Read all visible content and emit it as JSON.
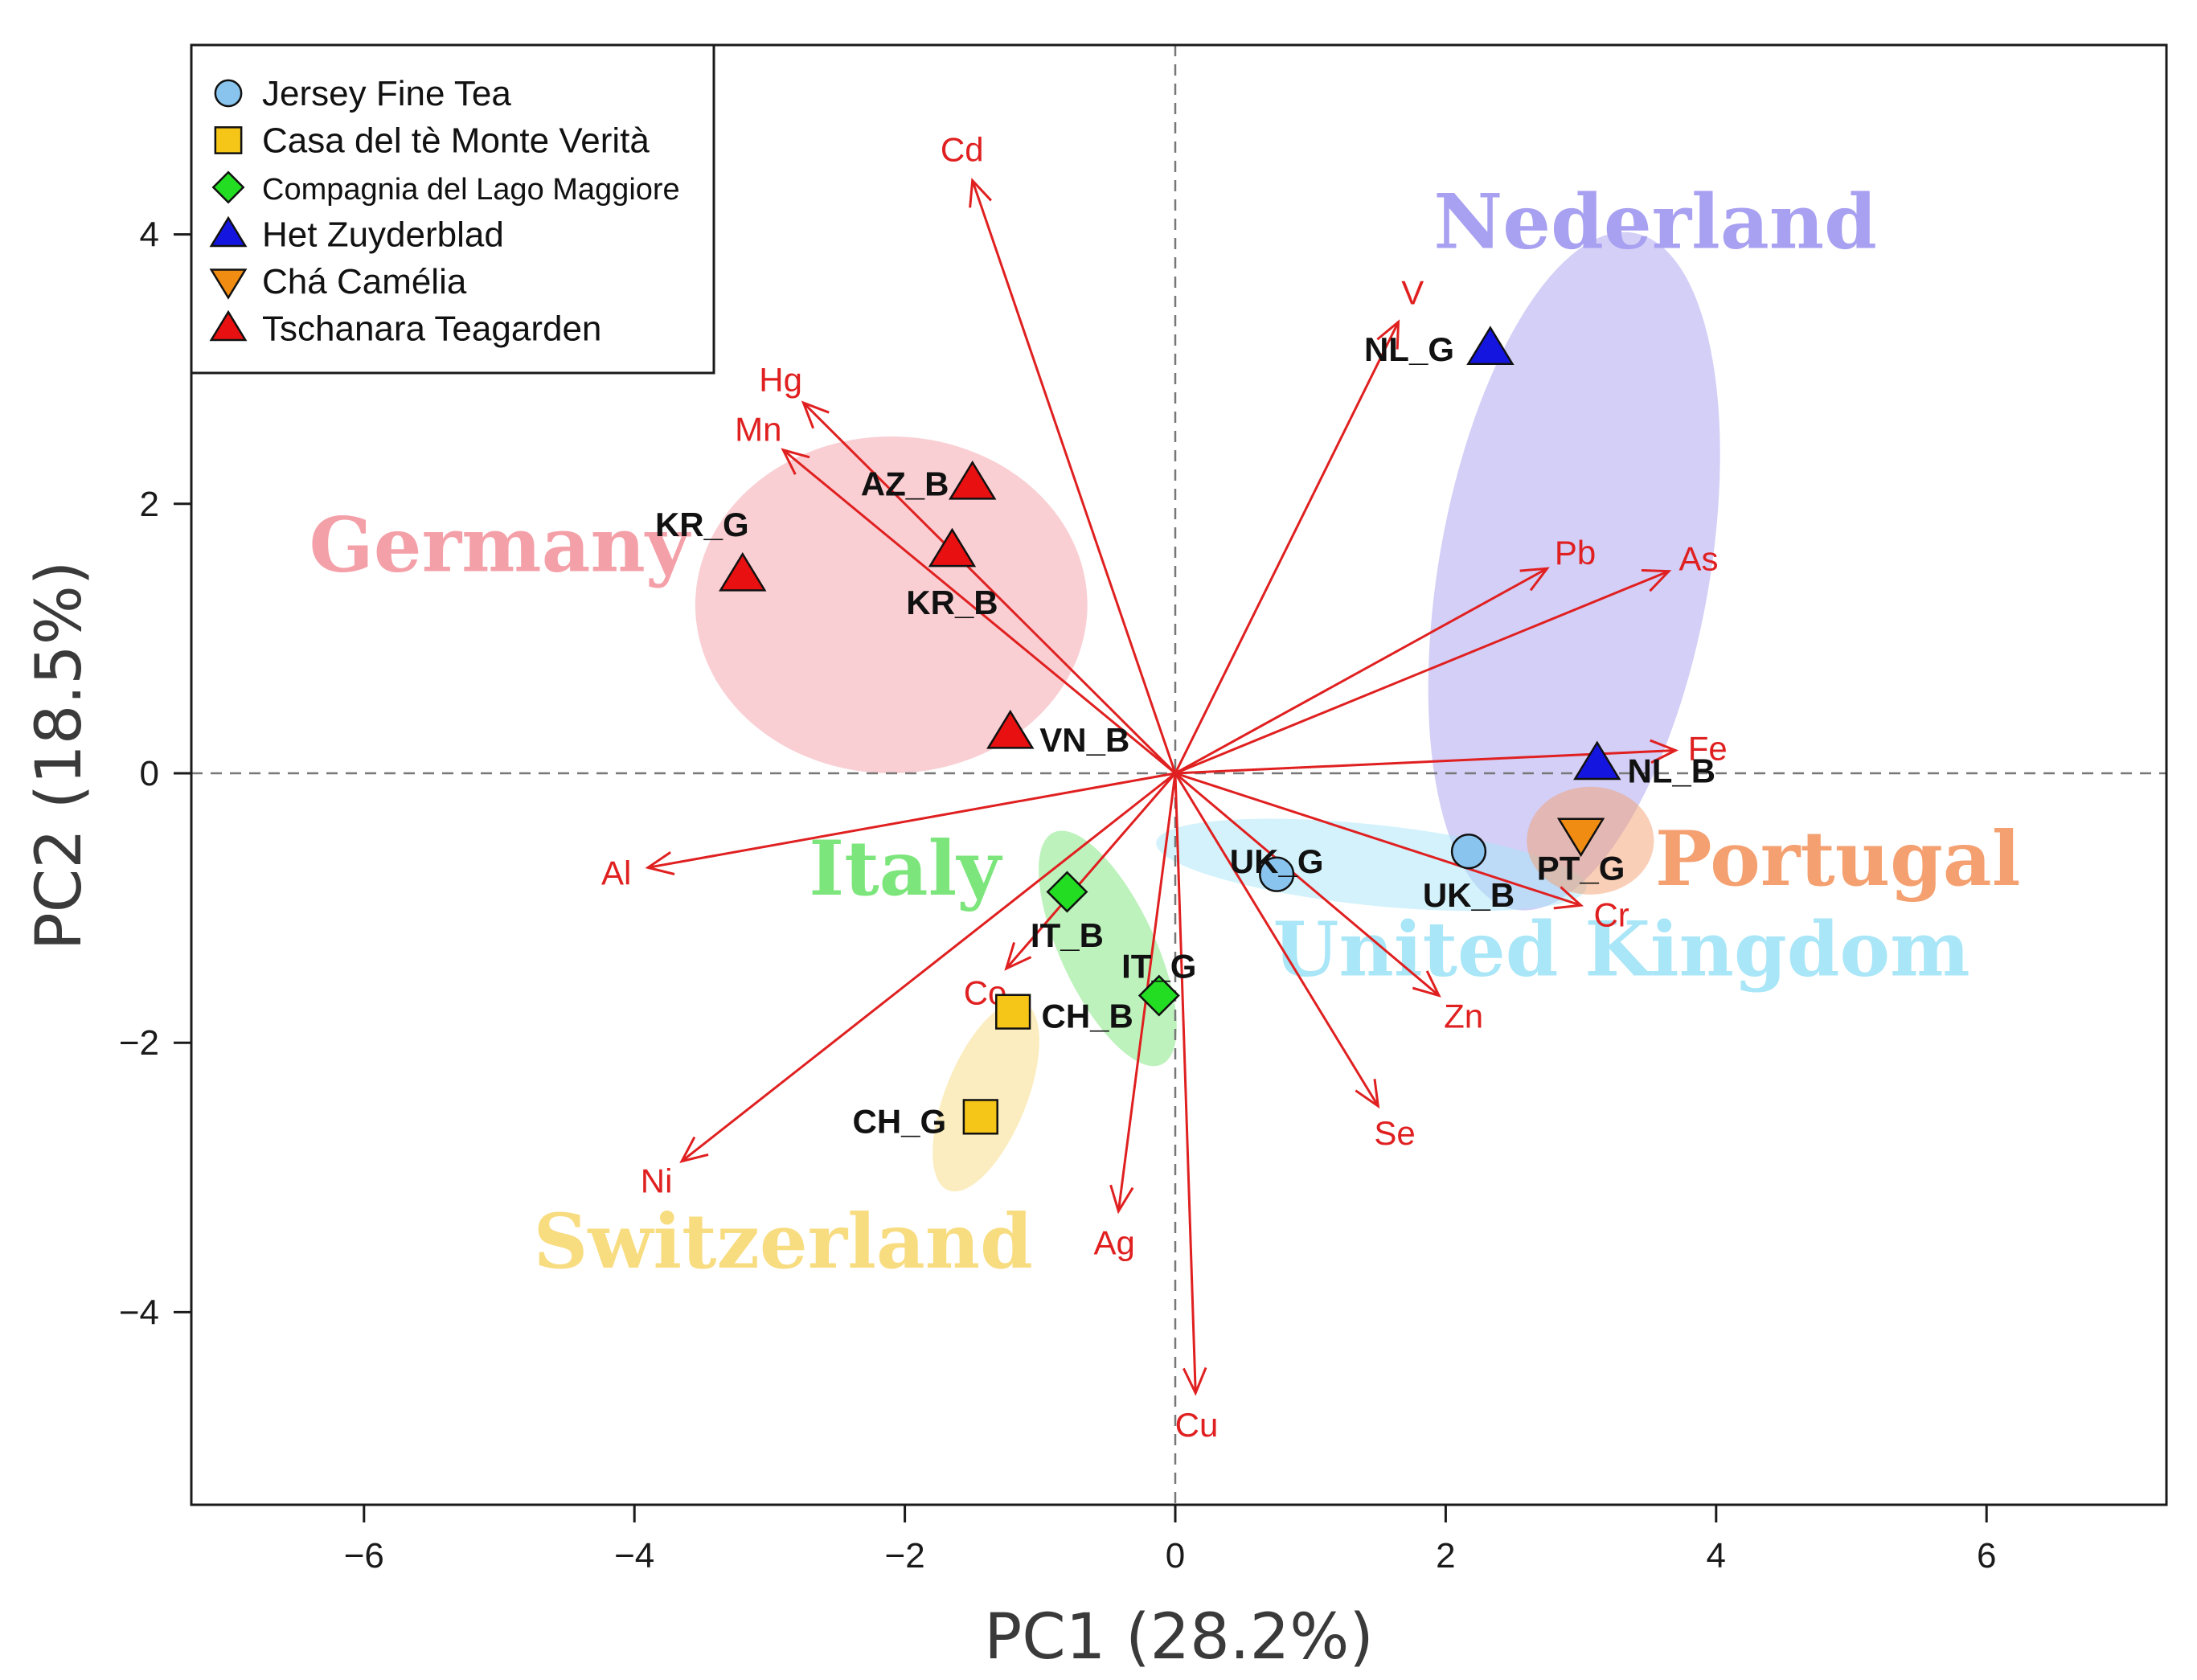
{
  "chart_data": {
    "type": "scatter",
    "subtype": "pca-biplot",
    "title": "",
    "xlabel": "PC1 (28.2%)",
    "ylabel": "PC2 (18.5%)",
    "xlim": [
      -7.3,
      7.3
    ],
    "ylim": [
      -5.4,
      5.4
    ],
    "xticks": [
      -6,
      -4,
      -2,
      0,
      2,
      4,
      6
    ],
    "yticks": [
      -4,
      -2,
      0,
      2,
      4
    ],
    "xtick_labels": [
      "−6",
      "−4",
      "−2",
      "0",
      "2",
      "4",
      "6"
    ],
    "ytick_labels": [
      "−4",
      "−2",
      "0",
      "2",
      "4"
    ],
    "reference_lines": {
      "x": 0,
      "y": 0,
      "style": "dashed"
    },
    "legend": {
      "position": "top-left",
      "entries": [
        {
          "label": "Jersey Fine Tea",
          "marker": "circle",
          "color": "#89c4ee"
        },
        {
          "label": "Casa del tè Monte Verità",
          "marker": "square",
          "color": "#f5c518"
        },
        {
          "label": "Compagnia del Lago Maggiore",
          "marker": "diamond",
          "color": "#22dd22"
        },
        {
          "label": "Het Zuyderblad",
          "marker": "triangle-up",
          "color": "#1515e0"
        },
        {
          "label": "Chá Camélia",
          "marker": "triangle-down",
          "color": "#f08c12"
        },
        {
          "label": "Tschanara Teagarden",
          "marker": "triangle-up",
          "color": "#e81010"
        }
      ]
    },
    "regions": [
      {
        "label": "Germany",
        "color": "#f4a0a8",
        "ellipse": {
          "cx": -2.1,
          "cy": 1.25,
          "rx": 1.45,
          "ry": 1.25,
          "angle": 0
        },
        "label_at": [
          -5.0,
          1.5
        ]
      },
      {
        "label": "Nederland",
        "color": "#a8a0f0",
        "ellipse": {
          "cx": 2.95,
          "cy": 1.5,
          "rx": 1.0,
          "ry": 2.55,
          "angle": 10
        },
        "label_at": [
          3.55,
          3.9
        ]
      },
      {
        "label": "United Kingdom",
        "color": "#a8e6f8",
        "ellipse": {
          "cx": 1.45,
          "cy": -0.68,
          "rx": 1.6,
          "ry": 0.3,
          "angle": 6
        },
        "label_at": [
          3.3,
          -1.5
        ]
      },
      {
        "label": "Portugal",
        "color": "#f4a070",
        "ellipse": {
          "cx": 3.07,
          "cy": -0.5,
          "rx": 0.47,
          "ry": 0.4,
          "angle": 0
        },
        "label_at": [
          4.9,
          -0.83
        ]
      },
      {
        "label": "Italy",
        "color": "#7ce67c",
        "ellipse": {
          "cx": -0.5,
          "cy": -1.3,
          "rx": 0.35,
          "ry": 0.95,
          "angle": -25
        },
        "label_at": [
          -2.0,
          -0.9
        ]
      },
      {
        "label": "Switzerland",
        "color": "#f8dc80",
        "ellipse": {
          "cx": -1.4,
          "cy": -2.4,
          "rx": 0.3,
          "ry": 0.75,
          "angle": 22
        },
        "label_at": [
          -2.9,
          -3.67
        ]
      }
    ],
    "points": [
      {
        "label": "KR_G",
        "group": "Tschanara Teagarden",
        "x": -3.2,
        "y": 1.47
      },
      {
        "label": "AZ_B",
        "group": "Tschanara Teagarden",
        "x": -1.5,
        "y": 2.15
      },
      {
        "label": "KR_B",
        "group": "Tschanara Teagarden",
        "x": -1.65,
        "y": 1.65
      },
      {
        "label": "VN_B",
        "group": "Tschanara Teagarden",
        "x": -1.22,
        "y": 0.3
      },
      {
        "label": "NL_G",
        "group": "Het Zuyderblad",
        "x": 2.33,
        "y": 3.15
      },
      {
        "label": "NL_B",
        "group": "Het Zuyderblad",
        "x": 3.12,
        "y": 0.07
      },
      {
        "label": "PT_G",
        "group": "Chá Camélia",
        "x": 3.0,
        "y": -0.45
      },
      {
        "label": "UK_G",
        "group": "Jersey Fine Tea",
        "x": 0.75,
        "y": -0.75
      },
      {
        "label": "UK_B",
        "group": "Jersey Fine Tea",
        "x": 2.17,
        "y": -0.58
      },
      {
        "label": "IT_B",
        "group": "Compagnia del Lago Maggiore",
        "x": -0.8,
        "y": -0.88
      },
      {
        "label": "IT_G",
        "group": "Compagnia del Lago Maggiore",
        "x": -0.12,
        "y": -1.65
      },
      {
        "label": "CH_B",
        "group": "Casa del tè Monte Verità",
        "x": -1.2,
        "y": -1.77
      },
      {
        "label": "CH_G",
        "group": "Casa del tè Monte Verità",
        "x": -1.44,
        "y": -2.55
      }
    ],
    "loadings": [
      {
        "label": "Cd",
        "x": -1.5,
        "y": 4.4
      },
      {
        "label": "V",
        "x": 1.65,
        "y": 3.35
      },
      {
        "label": "Hg",
        "x": -2.75,
        "y": 2.75
      },
      {
        "label": "Mn",
        "x": -2.9,
        "y": 2.4
      },
      {
        "label": "Pb",
        "x": 2.75,
        "y": 1.52
      },
      {
        "label": "As",
        "x": 3.65,
        "y": 1.5
      },
      {
        "label": "Fe",
        "x": 3.7,
        "y": 0.17
      },
      {
        "label": "Al",
        "x": -3.9,
        "y": -0.7
      },
      {
        "label": "Cr",
        "x": 3.0,
        "y": -0.98
      },
      {
        "label": "Zn",
        "x": 1.95,
        "y": -1.65
      },
      {
        "label": "Se",
        "x": 1.5,
        "y": -2.47
      },
      {
        "label": "Co",
        "x": -1.25,
        "y": -1.45
      },
      {
        "label": "Ni",
        "x": -3.65,
        "y": -2.88
      },
      {
        "label": "Ag",
        "x": -0.42,
        "y": -3.25
      },
      {
        "label": "Cu",
        "x": 0.15,
        "y": -4.6
      }
    ],
    "loading_color": "#e02020"
  }
}
